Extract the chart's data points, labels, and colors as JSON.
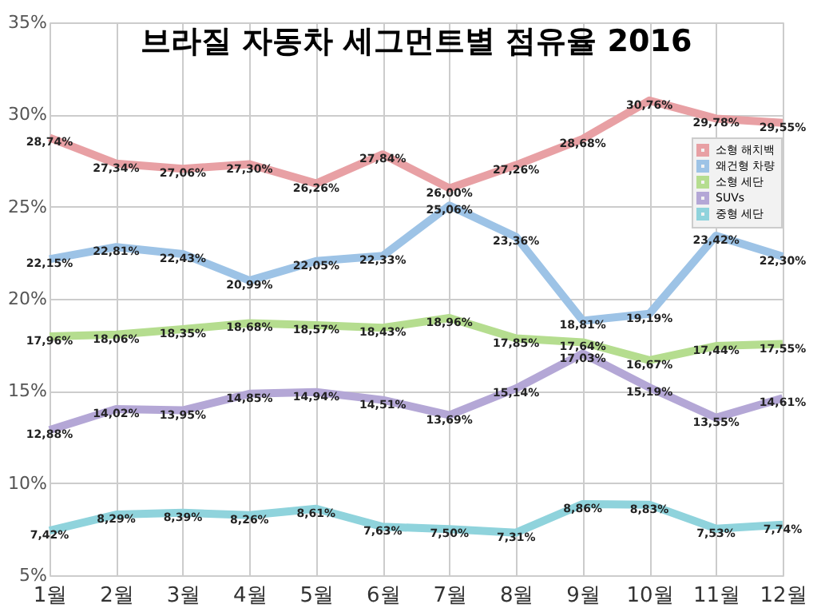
{
  "chart_data": {
    "type": "line",
    "title": "브라질 자동차 세그먼트별 점유율 2016",
    "categories": [
      "1월",
      "2월",
      "3월",
      "4월",
      "5월",
      "6월",
      "7월",
      "8월",
      "9월",
      "10월",
      "11월",
      "12월"
    ],
    "ylim": [
      5,
      35
    ],
    "yticks": [
      {
        "value": 5,
        "label": "5%"
      },
      {
        "value": 10,
        "label": "10%"
      },
      {
        "value": 15,
        "label": "15%"
      },
      {
        "value": 20,
        "label": "20%"
      },
      {
        "value": 25,
        "label": "25%"
      },
      {
        "value": 30,
        "label": "30%"
      },
      {
        "value": 35,
        "label": "35%"
      }
    ],
    "grid": true,
    "legend": "right",
    "marker": "none",
    "line_style": "solid",
    "series": [
      {
        "name": "소형 해치백",
        "color": "#e8a0a4",
        "values": [
          28.74,
          27.34,
          27.06,
          27.3,
          26.26,
          27.84,
          26.0,
          27.26,
          28.68,
          30.76,
          29.78,
          29.55
        ],
        "value_labels": [
          "28,74%",
          "27,34%",
          "27,06%",
          "27,30%",
          "26,26%",
          "27,84%",
          "26,00%",
          "27,26%",
          "28,68%",
          "30,76%",
          "29,78%",
          "29,55%"
        ]
      },
      {
        "name": "왜건형 차량",
        "color": "#9dc3e6",
        "values": [
          22.15,
          22.81,
          22.43,
          20.99,
          22.05,
          22.33,
          25.06,
          23.36,
          18.81,
          19.19,
          23.42,
          22.3
        ],
        "value_labels": [
          "22,15%",
          "22,81%",
          "22,43%",
          "20,99%",
          "22,05%",
          "22,33%",
          "25,06%",
          "23,36%",
          "18,81%",
          "19,19%",
          "23,42%",
          "22,30%"
        ]
      },
      {
        "name": "소형 세단",
        "color": "#b5dd8f",
        "values": [
          17.96,
          18.06,
          18.35,
          18.68,
          18.57,
          18.43,
          18.96,
          17.85,
          17.64,
          16.67,
          17.44,
          17.55
        ],
        "value_labels": [
          "17,96%",
          "18,06%",
          "18,35%",
          "18,68%",
          "18,57%",
          "18,43%",
          "18,96%",
          "17,85%",
          "17,64%",
          "16,67%",
          "17,44%",
          "17,55%"
        ]
      },
      {
        "name": "SUVs",
        "color": "#b4a7d6",
        "values": [
          12.88,
          14.02,
          13.95,
          14.85,
          14.94,
          14.51,
          13.69,
          15.14,
          17.03,
          15.19,
          13.55,
          14.61
        ],
        "value_labels": [
          "12,88%",
          "14,02%",
          "13,95%",
          "14,85%",
          "14,94%",
          "14,51%",
          "13,69%",
          "15,14%",
          "17,03%",
          "15,19%",
          "13,55%",
          "14,61%"
        ]
      },
      {
        "name": "중형 세단",
        "color": "#8fd3dc",
        "values": [
          7.42,
          8.29,
          8.39,
          8.26,
          8.61,
          7.63,
          7.5,
          7.31,
          8.86,
          8.83,
          7.53,
          7.74
        ],
        "value_labels": [
          "7,42%",
          "8,29%",
          "8,39%",
          "8,26%",
          "8,61%",
          "7,63%",
          "7,50%",
          "7,31%",
          "8,86%",
          "8,83%",
          "7,53%",
          "7,74%"
        ]
      }
    ]
  }
}
